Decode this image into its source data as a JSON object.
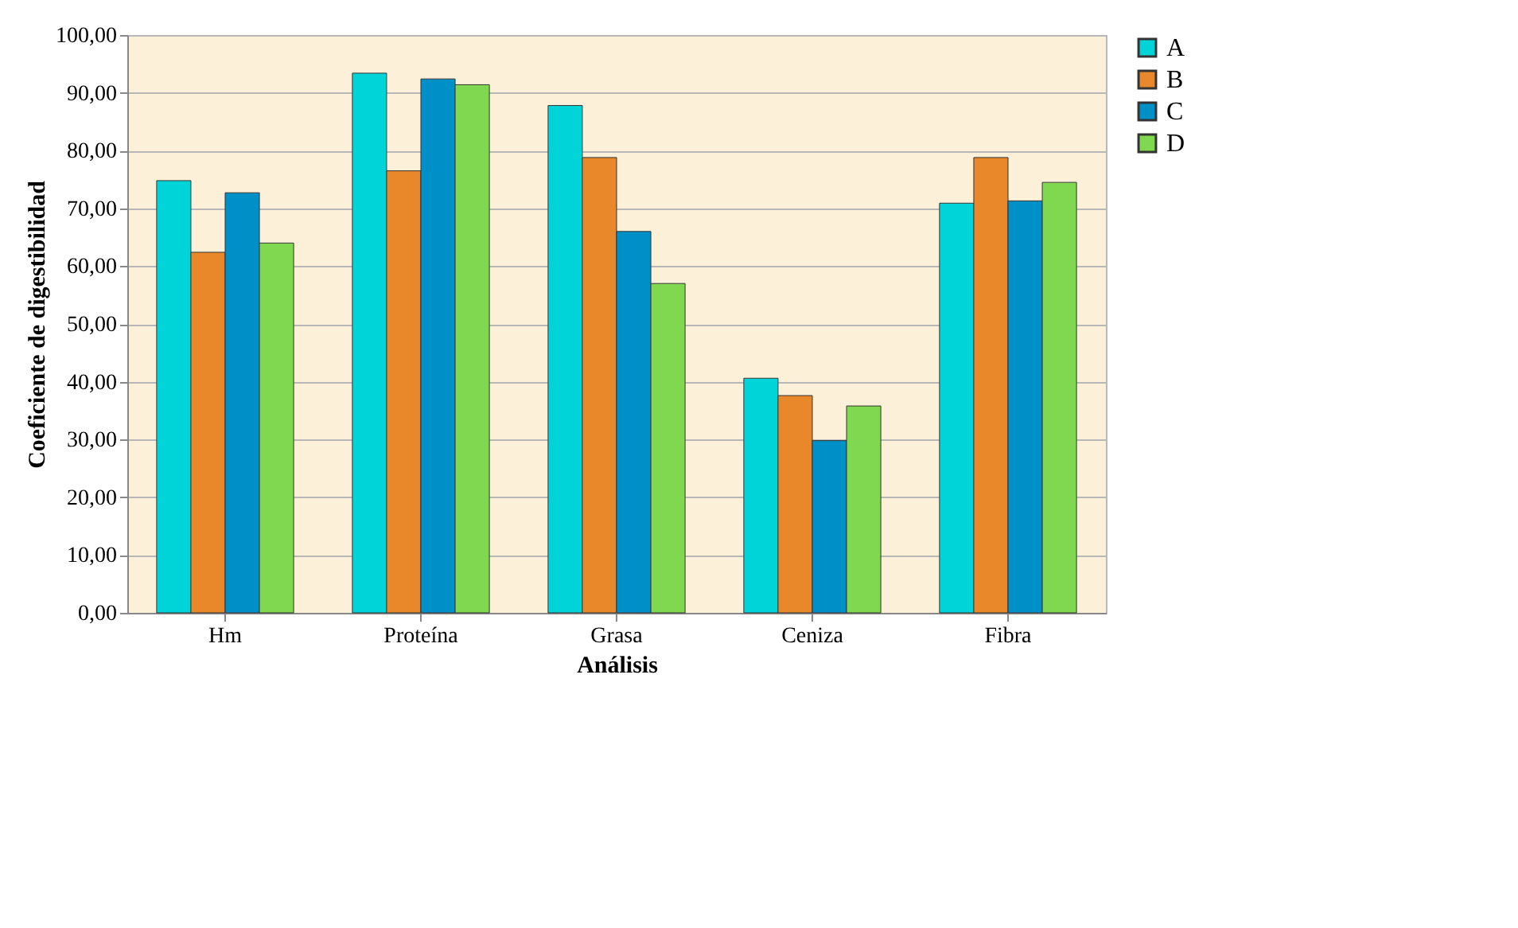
{
  "chart_data": {
    "type": "bar",
    "xlabel": "Análisis",
    "ylabel": "Coeficiente de digestibilidad",
    "categories": [
      "Hm",
      "Proteína",
      "Grasa",
      "Ceniza",
      "Fibra"
    ],
    "series": [
      {
        "name": "A",
        "color": "#00d4d8",
        "values": [
          74.8,
          93.4,
          87.8,
          40.6,
          70.9
        ]
      },
      {
        "name": "B",
        "color": "#e8882a",
        "values": [
          62.4,
          76.5,
          78.8,
          37.6,
          78.8
        ]
      },
      {
        "name": "C",
        "color": "#0090c8",
        "values": [
          72.7,
          92.4,
          66.0,
          29.8,
          71.3
        ]
      },
      {
        "name": "D",
        "color": "#80d850",
        "values": [
          64.0,
          91.4,
          57.0,
          35.8,
          74.5
        ]
      }
    ],
    "ylim": [
      0,
      100
    ],
    "yticks": [
      {
        "value": 0,
        "label": "0,00"
      },
      {
        "value": 10,
        "label": "10,00"
      },
      {
        "value": 20,
        "label": "20,00"
      },
      {
        "value": 30,
        "label": "30,00"
      },
      {
        "value": 40,
        "label": "40,00"
      },
      {
        "value": 50,
        "label": "50,00"
      },
      {
        "value": 60,
        "label": "60,00"
      },
      {
        "value": 70,
        "label": "70,00"
      },
      {
        "value": 80,
        "label": "80,00"
      },
      {
        "value": 90,
        "label": "90,00"
      },
      {
        "value": 100,
        "label": "100,00"
      }
    ],
    "grid": "y",
    "legend": "right"
  }
}
